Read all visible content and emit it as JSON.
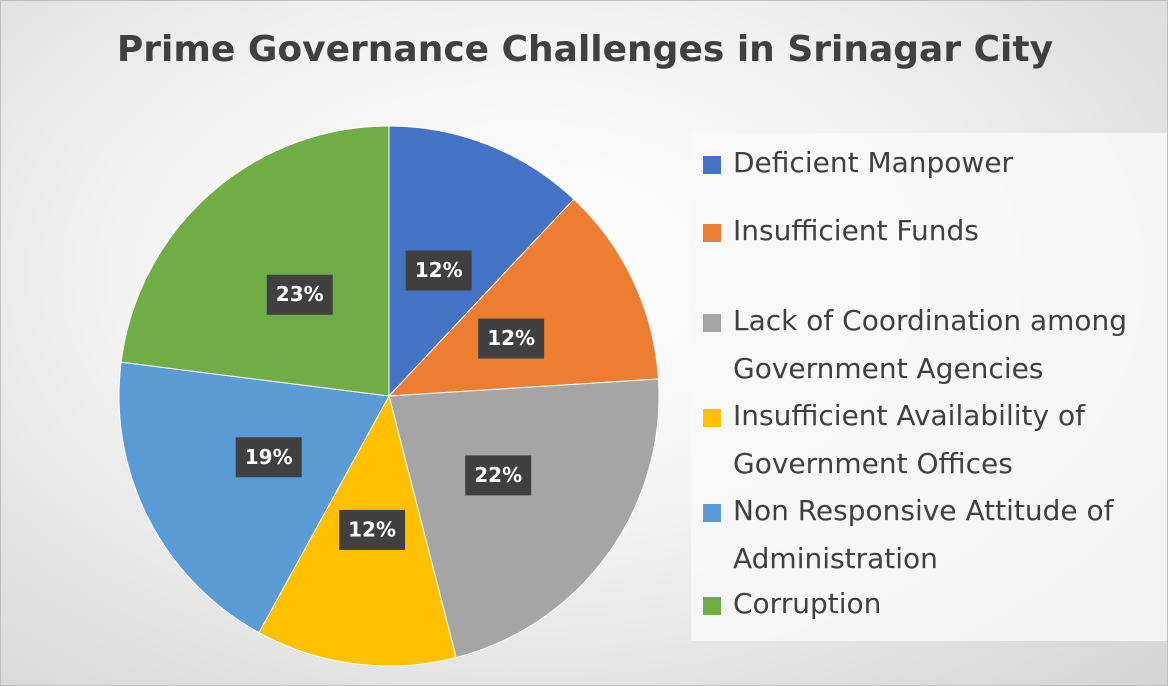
{
  "chart_data": {
    "type": "pie",
    "title": "Prime Governance Challenges in Srinagar City",
    "categories": [
      "Deficient Manpower",
      "Insufficient Funds",
      "Lack of Coordination among Government Agencies",
      "Insufficient Availability of Government Offices",
      "Non Responsive Attitude of Administration",
      "Corruption"
    ],
    "values": [
      12,
      12,
      22,
      12,
      19,
      23
    ],
    "value_labels": [
      "12%",
      "12%",
      "22%",
      "12%",
      "19%",
      "23%"
    ],
    "colors": [
      "#4472c4",
      "#ed7d31",
      "#a5a5a5",
      "#ffc000",
      "#5b9bd5",
      "#70ad47"
    ],
    "legend": "right"
  }
}
